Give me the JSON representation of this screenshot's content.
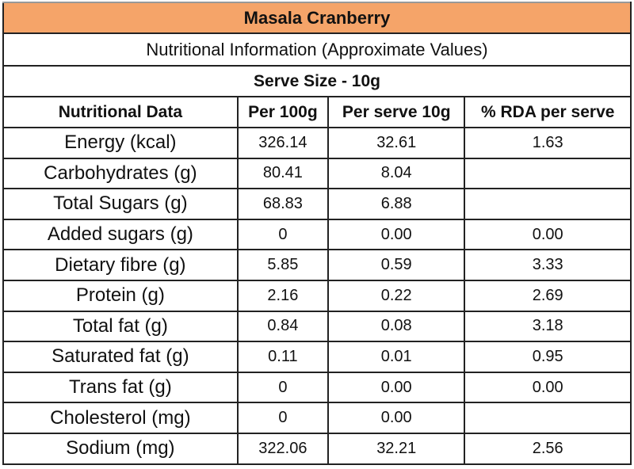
{
  "title": "Masala Cranberry",
  "subtitle": "Nutritional Information (Approximate Values)",
  "serve_size": "Serve Size - 10g",
  "headers": [
    "Nutritional Data",
    "Per 100g",
    "Per serve 10g",
    "% RDA per serve"
  ],
  "rows": [
    {
      "label": "Energy (kcal)",
      "per100": "326.14",
      "perserve": "32.61",
      "rda": "1.63"
    },
    {
      "label": "Carbohydrates (g)",
      "per100": "80.41",
      "perserve": "8.04",
      "rda": ""
    },
    {
      "label": "Total Sugars (g)",
      "per100": "68.83",
      "perserve": "6.88",
      "rda": ""
    },
    {
      "label": "Added sugars (g)",
      "per100": "0",
      "perserve": "0.00",
      "rda": "0.00"
    },
    {
      "label": "Dietary fibre (g)",
      "per100": "5.85",
      "perserve": "0.59",
      "rda": "3.33"
    },
    {
      "label": "Protein (g)",
      "per100": "2.16",
      "perserve": "0.22",
      "rda": "2.69"
    },
    {
      "label": "Total fat (g)",
      "per100": "0.84",
      "perserve": "0.08",
      "rda": "3.18"
    },
    {
      "label": "Saturated fat (g)",
      "per100": "0.11",
      "perserve": "0.01",
      "rda": "0.95"
    },
    {
      "label": "Trans fat (g)",
      "per100": "0",
      "perserve": "0.00",
      "rda": "0.00"
    },
    {
      "label": "Cholesterol (mg)",
      "per100": "0",
      "perserve": "0.00",
      "rda": ""
    },
    {
      "label": "Sodium (mg)",
      "per100": "322.06",
      "perserve": "32.21",
      "rda": "2.56"
    }
  ],
  "colors": {
    "title_bg": "#F5A469"
  }
}
